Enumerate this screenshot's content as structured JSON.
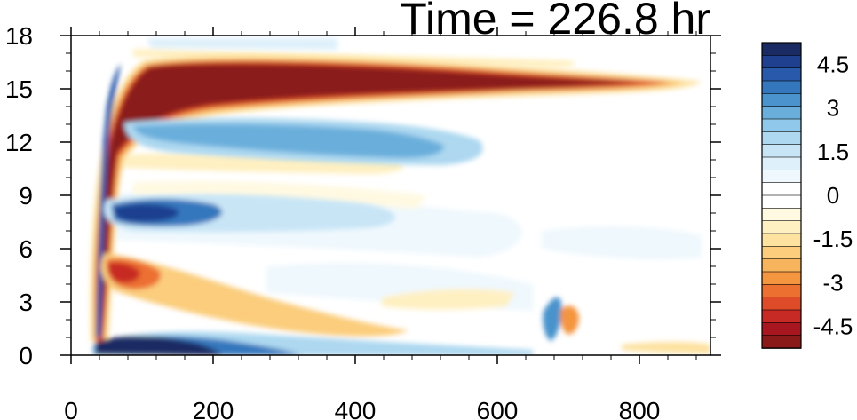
{
  "chart_data": {
    "type": "heatmap",
    "title": "Time = 226.8 hr",
    "xlabel": "",
    "ylabel": "",
    "xlim": [
      0,
      900
    ],
    "ylim": [
      0,
      18
    ],
    "x_ticks": [
      "0",
      "200",
      "400",
      "600",
      "800"
    ],
    "x_tick_values": [
      0,
      200,
      400,
      600,
      800
    ],
    "y_ticks": [
      "0",
      "3",
      "6",
      "9",
      "12",
      "15",
      "18"
    ],
    "y_tick_values": [
      0,
      3,
      6,
      9,
      12,
      15,
      18
    ],
    "colorbar": {
      "min": -5.25,
      "max": 5.25,
      "step": 0.5,
      "labels": [
        "4.5",
        "3",
        "1.5",
        "0",
        "-1.5",
        "-3",
        "-4.5"
      ],
      "label_values": [
        4.5,
        3,
        1.5,
        0,
        -1.5,
        -3,
        -4.5
      ],
      "colors": [
        "#1a2b63",
        "#1f3f8f",
        "#2859aa",
        "#3577bd",
        "#4a93cc",
        "#6aafdc",
        "#8fc8ea",
        "#add8f0",
        "#c8e5f6",
        "#def0fa",
        "#eff8fd",
        "#ffffff",
        "#ffffff",
        "#fff9e2",
        "#fff0c2",
        "#fde2a0",
        "#fbcd7d",
        "#f8b45c",
        "#f4953f",
        "#ec7030",
        "#dd4b28",
        "#c72a24",
        "#a8171f",
        "#8a1a1a"
      ]
    },
    "features": [
      {
        "x": [
          30,
          880
        ],
        "y": [
          14.5,
          16.4
        ],
        "value": 6.5,
        "description": "strong positive jet band"
      },
      {
        "x": [
          38,
          75
        ],
        "y": [
          5,
          16.5
        ],
        "value": 6.5,
        "description": "vertical positive column"
      },
      {
        "x": [
          35,
          900
        ],
        "y": [
          0,
          1
        ],
        "value": -5.5,
        "description": "negative near-surface band"
      },
      {
        "x": [
          75,
          560
        ],
        "y": [
          11.3,
          13
        ],
        "value": -2.5,
        "description": "negative band below jet"
      },
      {
        "x": [
          60,
          450
        ],
        "y": [
          7,
          8.8
        ],
        "value": -3,
        "description": "negative mid-level band"
      },
      {
        "x": [
          50,
          450
        ],
        "y": [
          1.8,
          5.2
        ],
        "value": 2.5,
        "description": "positive low-level band"
      },
      {
        "x": [
          660,
          700
        ],
        "y": [
          1,
          3
        ],
        "value": -3,
        "description": "isolated negative blob"
      },
      {
        "x": [
          680,
          720
        ],
        "y": [
          1,
          3
        ],
        "value": 2.5,
        "description": "isolated positive blob"
      }
    ]
  }
}
